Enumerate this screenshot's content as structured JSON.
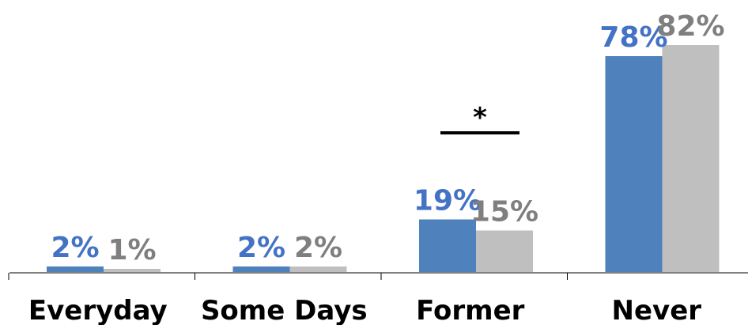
{
  "chart_data": {
    "type": "bar",
    "categories": [
      "Everyday",
      "Some Days",
      "Former",
      "Never"
    ],
    "series": [
      {
        "values": [
          2,
          2,
          19,
          78
        ],
        "labels": [
          "2%",
          "2%",
          "19%",
          "78%"
        ],
        "color": "#4F81BD",
        "label_color": "#4472C4"
      },
      {
        "values": [
          1,
          2,
          15,
          82
        ],
        "labels": [
          "1%",
          "2%",
          "15%",
          "82%"
        ],
        "color": "#BFBFBF",
        "label_color": "#7F7F7F"
      }
    ],
    "ylim": [
      0,
      100
    ],
    "grid": false,
    "legend": "none",
    "annotations": [
      {
        "category": "Former",
        "text": "*"
      }
    ]
  }
}
